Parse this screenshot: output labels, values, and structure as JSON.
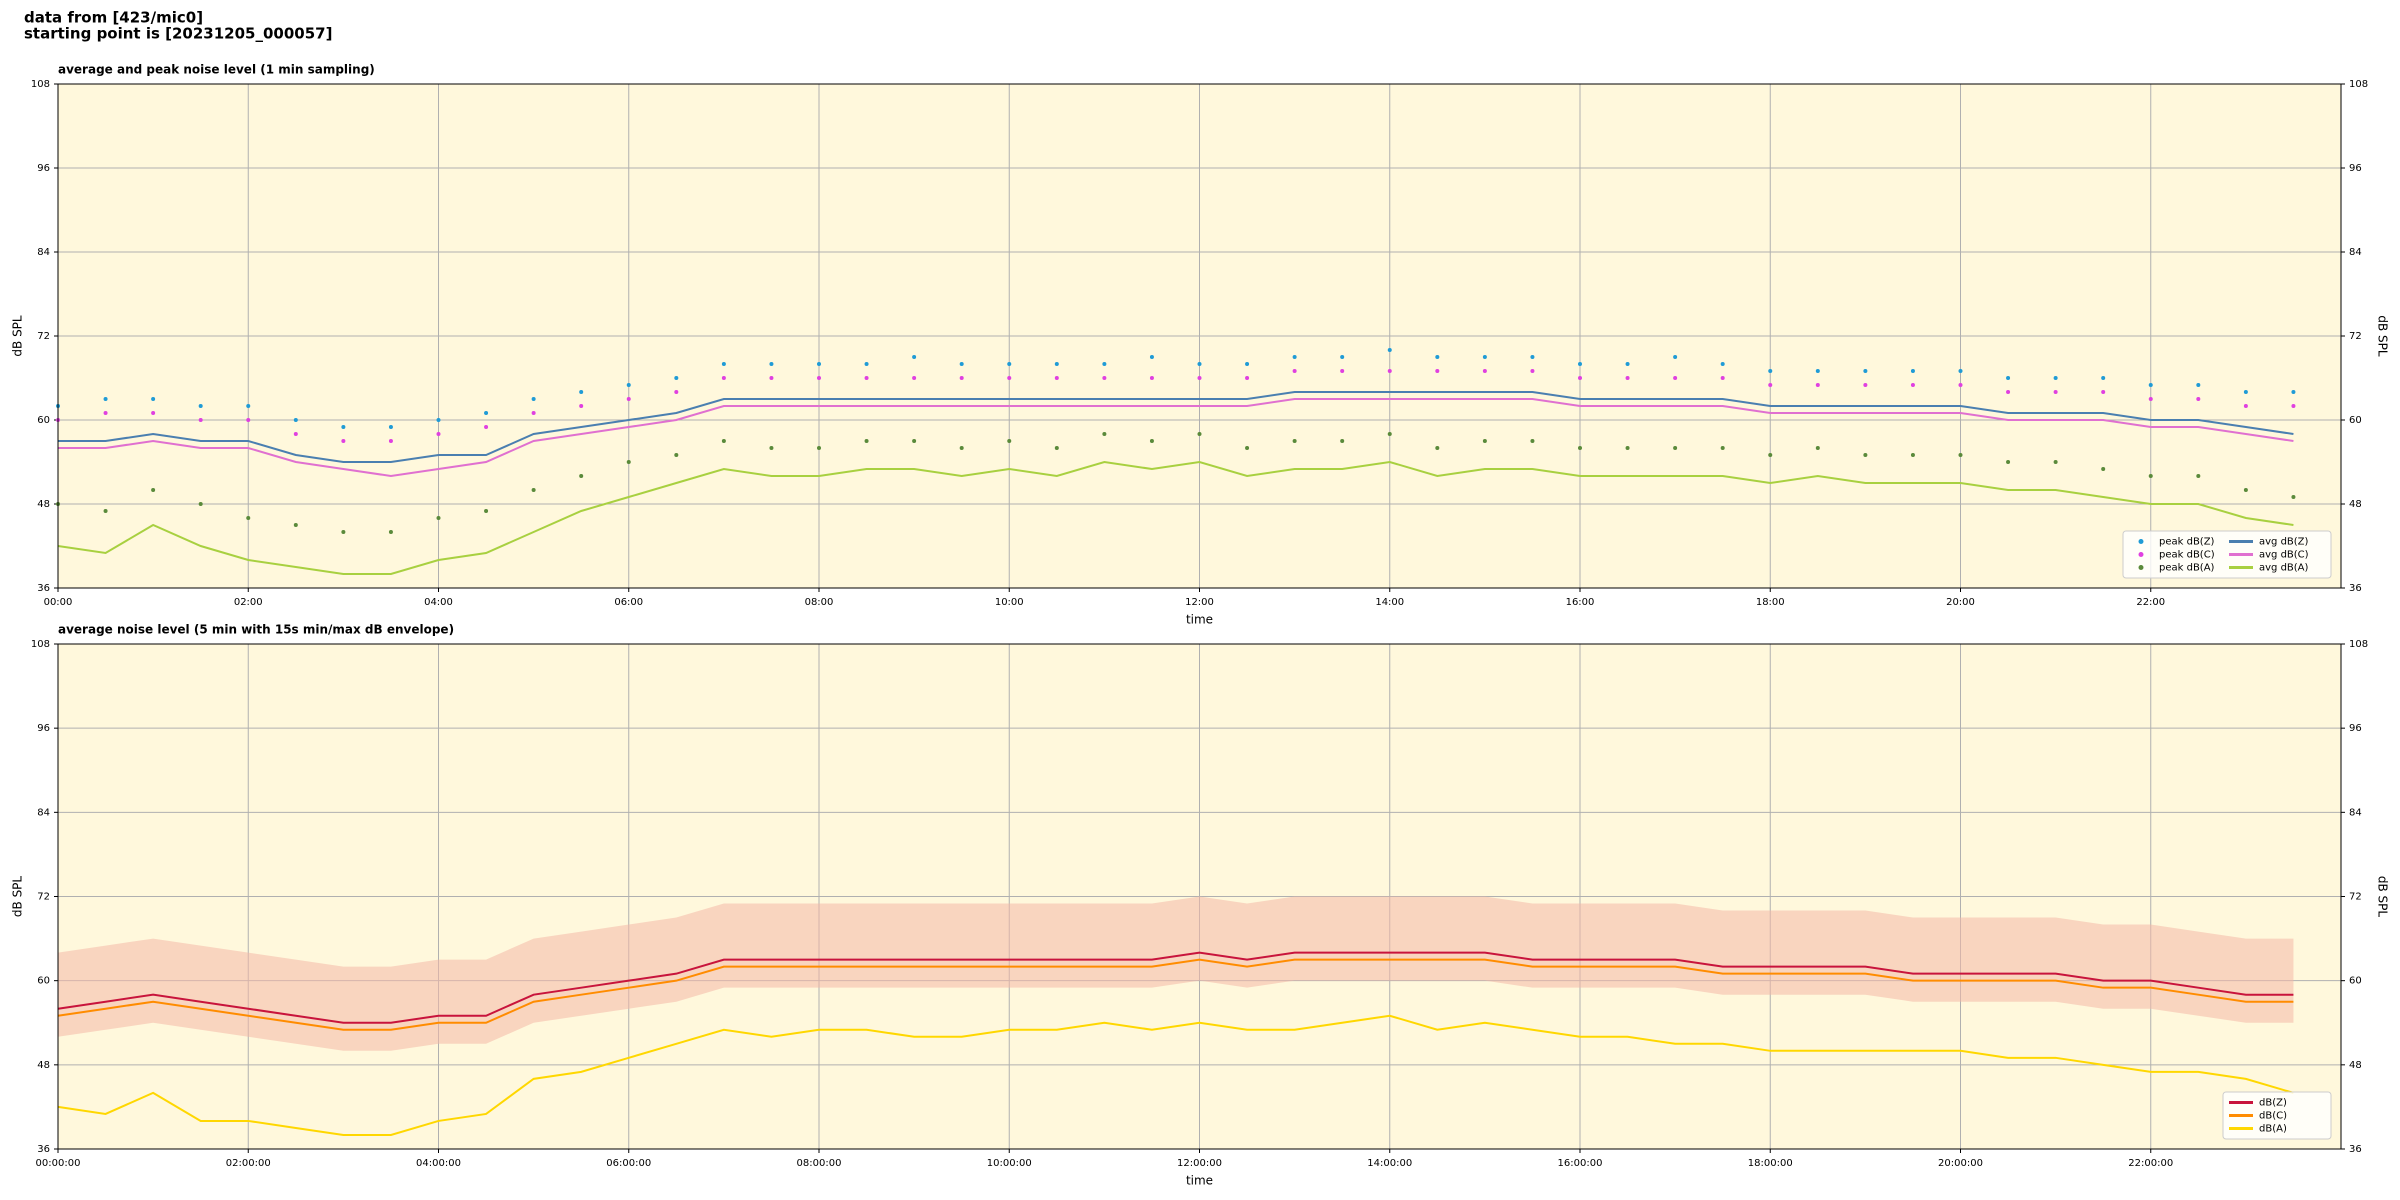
{
  "header": {
    "lines": [
      "data from [423/mic0]",
      "starting point is [20231205_000057]"
    ]
  },
  "chart_data": [
    {
      "type": "line",
      "title": "average and peak noise level (1 min sampling)",
      "xlabel": "time",
      "ylabel": "dB SPL",
      "x": [
        0,
        0.5,
        1,
        1.5,
        2,
        2.5,
        3,
        3.5,
        4,
        4.5,
        5,
        5.5,
        6,
        6.5,
        7,
        7.5,
        8,
        8.5,
        9,
        9.5,
        10,
        10.5,
        11,
        11.5,
        12,
        12.5,
        13,
        13.5,
        14,
        14.5,
        15,
        15.5,
        16,
        16.5,
        17,
        17.5,
        18,
        18.5,
        19,
        19.5,
        20,
        20.5,
        21,
        21.5,
        22,
        22.5,
        23,
        23.5
      ],
      "xlim": [
        0,
        24
      ],
      "xticks": [
        {
          "value": 0,
          "label": "00:00"
        },
        {
          "value": 2,
          "label": "02:00"
        },
        {
          "value": 4,
          "label": "04:00"
        },
        {
          "value": 6,
          "label": "06:00"
        },
        {
          "value": 8,
          "label": "08:00"
        },
        {
          "value": 10,
          "label": "10:00"
        },
        {
          "value": 12,
          "label": "12:00"
        },
        {
          "value": 14,
          "label": "14:00"
        },
        {
          "value": 16,
          "label": "16:00"
        },
        {
          "value": 18,
          "label": "18:00"
        },
        {
          "value": 20,
          "label": "20:00"
        },
        {
          "value": 22,
          "label": "22:00"
        }
      ],
      "ylim": [
        36,
        108
      ],
      "yticks": [
        36,
        48,
        60,
        72,
        84,
        96,
        108
      ],
      "grid": true,
      "background": "#fff8dc",
      "legend": "lower right",
      "legend_columns": 2,
      "series": [
        {
          "name": "peak dB(Z)",
          "type": "scatter",
          "color": "#1f9bd6",
          "values": [
            62,
            63,
            63,
            62,
            62,
            60,
            59,
            59,
            60,
            61,
            63,
            64,
            65,
            66,
            68,
            68,
            68,
            68,
            69,
            68,
            68,
            68,
            68,
            69,
            68,
            68,
            69,
            69,
            70,
            69,
            69,
            69,
            68,
            68,
            69,
            68,
            67,
            67,
            67,
            67,
            67,
            66,
            66,
            66,
            65,
            65,
            64,
            64
          ]
        },
        {
          "name": "peak dB(C)",
          "type": "scatter",
          "color": "#e040e0",
          "values": [
            60,
            61,
            61,
            60,
            60,
            58,
            57,
            57,
            58,
            59,
            61,
            62,
            63,
            64,
            66,
            66,
            66,
            66,
            66,
            66,
            66,
            66,
            66,
            66,
            66,
            66,
            67,
            67,
            67,
            67,
            67,
            67,
            66,
            66,
            66,
            66,
            65,
            65,
            65,
            65,
            65,
            64,
            64,
            64,
            63,
            63,
            62,
            62
          ]
        },
        {
          "name": "peak dB(A)",
          "type": "scatter",
          "color": "#5a8a3a",
          "values": [
            48,
            47,
            50,
            48,
            46,
            45,
            44,
            44,
            46,
            47,
            50,
            52,
            54,
            55,
            57,
            56,
            56,
            57,
            57,
            56,
            57,
            56,
            58,
            57,
            58,
            56,
            57,
            57,
            58,
            56,
            57,
            57,
            56,
            56,
            56,
            56,
            55,
            56,
            55,
            55,
            55,
            54,
            54,
            53,
            52,
            52,
            50,
            49
          ]
        },
        {
          "name": "avg dB(Z)",
          "type": "line",
          "color": "#4a7fb0",
          "values": [
            57,
            57,
            58,
            57,
            57,
            55,
            54,
            54,
            55,
            55,
            58,
            59,
            60,
            61,
            63,
            63,
            63,
            63,
            63,
            63,
            63,
            63,
            63,
            63,
            63,
            63,
            64,
            64,
            64,
            64,
            64,
            64,
            63,
            63,
            63,
            63,
            62,
            62,
            62,
            62,
            62,
            61,
            61,
            61,
            60,
            60,
            59,
            58
          ]
        },
        {
          "name": "avg dB(C)",
          "type": "line",
          "color": "#e070d0",
          "values": [
            56,
            56,
            57,
            56,
            56,
            54,
            53,
            52,
            53,
            54,
            57,
            58,
            59,
            60,
            62,
            62,
            62,
            62,
            62,
            62,
            62,
            62,
            62,
            62,
            62,
            62,
            63,
            63,
            63,
            63,
            63,
            63,
            62,
            62,
            62,
            62,
            61,
            61,
            61,
            61,
            61,
            60,
            60,
            60,
            59,
            59,
            58,
            57
          ]
        },
        {
          "name": "avg dB(A)",
          "type": "line",
          "color": "#a8d040",
          "values": [
            42,
            41,
            45,
            42,
            40,
            39,
            38,
            38,
            40,
            41,
            44,
            47,
            49,
            51,
            53,
            52,
            52,
            53,
            53,
            52,
            53,
            52,
            54,
            53,
            54,
            52,
            53,
            53,
            54,
            52,
            53,
            53,
            52,
            52,
            52,
            52,
            51,
            52,
            51,
            51,
            51,
            50,
            50,
            49,
            48,
            48,
            46,
            45
          ]
        }
      ]
    },
    {
      "type": "line",
      "title": "average noise level (5 min with 15s min/max dB envelope)",
      "xlabel": "time",
      "ylabel": "dB SPL",
      "x": [
        0,
        0.5,
        1,
        1.5,
        2,
        2.5,
        3,
        3.5,
        4,
        4.5,
        5,
        5.5,
        6,
        6.5,
        7,
        7.5,
        8,
        8.5,
        9,
        9.5,
        10,
        10.5,
        11,
        11.5,
        12,
        12.5,
        13,
        13.5,
        14,
        14.5,
        15,
        15.5,
        16,
        16.5,
        17,
        17.5,
        18,
        18.5,
        19,
        19.5,
        20,
        20.5,
        21,
        21.5,
        22,
        22.5,
        23,
        23.5
      ],
      "xlim": [
        0,
        24
      ],
      "xticks": [
        {
          "value": 0,
          "label": "00:00:00"
        },
        {
          "value": 2,
          "label": "02:00:00"
        },
        {
          "value": 4,
          "label": "04:00:00"
        },
        {
          "value": 6,
          "label": "06:00:00"
        },
        {
          "value": 8,
          "label": "08:00:00"
        },
        {
          "value": 10,
          "label": "10:00:00"
        },
        {
          "value": 12,
          "label": "12:00:00"
        },
        {
          "value": 14,
          "label": "14:00:00"
        },
        {
          "value": 16,
          "label": "16:00:00"
        },
        {
          "value": 18,
          "label": "18:00:00"
        },
        {
          "value": 20,
          "label": "20:00:00"
        },
        {
          "value": 22,
          "label": "22:00:00"
        }
      ],
      "ylim": [
        36,
        108
      ],
      "yticks": [
        36,
        48,
        60,
        72,
        84,
        96,
        108
      ],
      "grid": true,
      "background": "#fff8dc",
      "legend": "lower right",
      "legend_columns": 1,
      "envelope": {
        "color": "#f4b8a8",
        "low": [
          52,
          53,
          54,
          53,
          52,
          51,
          50,
          50,
          51,
          51,
          54,
          55,
          56,
          57,
          59,
          59,
          59,
          59,
          59,
          59,
          59,
          59,
          59,
          59,
          60,
          59,
          60,
          60,
          60,
          60,
          60,
          59,
          59,
          59,
          59,
          58,
          58,
          58,
          58,
          57,
          57,
          57,
          57,
          56,
          56,
          55,
          54,
          54
        ],
        "high": [
          64,
          65,
          66,
          65,
          64,
          63,
          62,
          62,
          63,
          63,
          66,
          67,
          68,
          69,
          71,
          71,
          71,
          71,
          71,
          71,
          71,
          71,
          71,
          71,
          72,
          71,
          72,
          72,
          72,
          72,
          72,
          71,
          71,
          71,
          71,
          70,
          70,
          70,
          70,
          69,
          69,
          69,
          69,
          68,
          68,
          67,
          66,
          66
        ]
      },
      "series": [
        {
          "name": "dB(Z)",
          "type": "line",
          "color": "#c8143c",
          "values": [
            56,
            57,
            58,
            57,
            56,
            55,
            54,
            54,
            55,
            55,
            58,
            59,
            60,
            61,
            63,
            63,
            63,
            63,
            63,
            63,
            63,
            63,
            63,
            63,
            64,
            63,
            64,
            64,
            64,
            64,
            64,
            63,
            63,
            63,
            63,
            62,
            62,
            62,
            62,
            61,
            61,
            61,
            61,
            60,
            60,
            59,
            58,
            58
          ]
        },
        {
          "name": "dB(C)",
          "type": "line",
          "color": "#ff8c00",
          "values": [
            55,
            56,
            57,
            56,
            55,
            54,
            53,
            53,
            54,
            54,
            57,
            58,
            59,
            60,
            62,
            62,
            62,
            62,
            62,
            62,
            62,
            62,
            62,
            62,
            63,
            62,
            63,
            63,
            63,
            63,
            63,
            62,
            62,
            62,
            62,
            61,
            61,
            61,
            61,
            60,
            60,
            60,
            60,
            59,
            59,
            58,
            57,
            57
          ]
        },
        {
          "name": "dB(A)",
          "type": "line",
          "color": "#ffd700",
          "values": [
            42,
            41,
            44,
            40,
            40,
            39,
            38,
            38,
            40,
            41,
            46,
            47,
            49,
            51,
            53,
            52,
            53,
            53,
            52,
            52,
            53,
            53,
            54,
            53,
            54,
            53,
            53,
            54,
            55,
            53,
            54,
            53,
            52,
            52,
            51,
            51,
            50,
            50,
            50,
            50,
            50,
            49,
            49,
            48,
            47,
            47,
            46,
            44
          ]
        }
      ]
    }
  ]
}
